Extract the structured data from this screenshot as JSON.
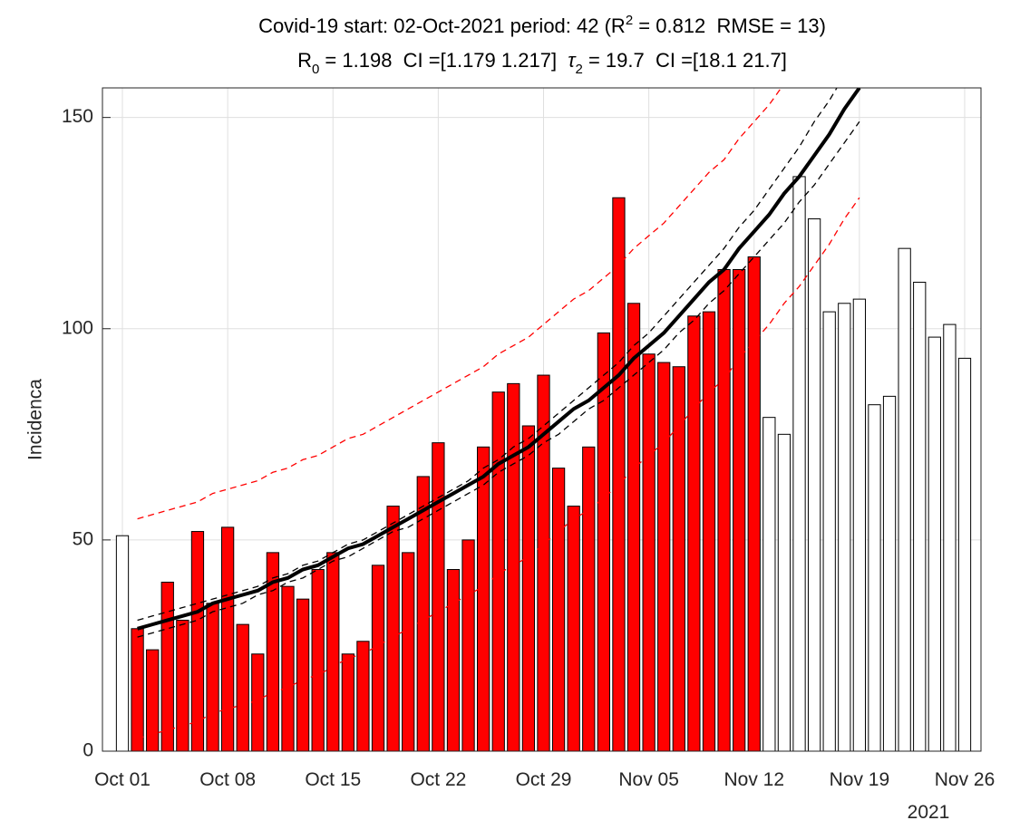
{
  "chart_data": {
    "type": "bar",
    "title_line1": [
      "Covid-19 start: 02-Oct-2021 period: 42 (R",
      "2",
      " = 0.812  RMSE = 13)"
    ],
    "title_line2": [
      "R",
      "0",
      " = 1.198  CI =[1.179 1.217]  ",
      "τ",
      "2",
      " = 19.7  CI =[18.1 21.7]"
    ],
    "ylabel": "Incidenca",
    "x_year_label": "2021",
    "categories": [
      "Oct 01",
      null,
      null,
      null,
      null,
      null,
      null,
      "Oct 08",
      null,
      null,
      null,
      null,
      null,
      null,
      "Oct 15",
      null,
      null,
      null,
      null,
      null,
      null,
      "Oct 22",
      null,
      null,
      null,
      null,
      null,
      null,
      "Oct 29",
      null,
      null,
      null,
      null,
      null,
      null,
      "Nov 05",
      null,
      null,
      null,
      null,
      null,
      null,
      "Nov 12",
      null,
      null,
      null,
      null,
      null,
      null,
      "Nov 19",
      null,
      null,
      null,
      null,
      null,
      null,
      "Nov 26"
    ],
    "ylim": [
      0,
      157
    ],
    "yticks": [
      0,
      50,
      100,
      150
    ],
    "grid": true,
    "bar_series": [
      {
        "color": "#ffffff",
        "values": [
          51,
          null,
          null,
          null,
          null,
          null,
          null,
          null,
          null,
          null,
          null,
          null,
          null,
          null,
          null,
          null,
          null,
          null,
          null,
          null,
          null,
          null,
          null,
          null,
          null,
          null,
          null,
          null,
          null,
          null,
          null,
          null,
          null,
          null,
          null,
          null,
          null,
          null,
          null,
          null,
          null,
          null,
          null,
          79,
          75,
          136,
          126,
          104,
          106,
          107,
          82,
          84,
          119,
          111,
          98,
          101,
          93
        ]
      },
      {
        "color": "#ff0000",
        "values": [
          null,
          29,
          24,
          40,
          31,
          52,
          35,
          53,
          30,
          23,
          47,
          39,
          36,
          43,
          47,
          23,
          26,
          44,
          58,
          47,
          65,
          73,
          43,
          50,
          72,
          85,
          87,
          77,
          89,
          67,
          58,
          72,
          99,
          131,
          106,
          94,
          92,
          91,
          103,
          104,
          114,
          114,
          117,
          null,
          null,
          null,
          null,
          null,
          null,
          null,
          null,
          null,
          null,
          null,
          null,
          null,
          null
        ]
      }
    ],
    "line_series": [
      {
        "color": "#ff0000",
        "dash": true,
        "width": 1.3,
        "values": [
          null,
          55,
          56,
          57,
          58,
          59,
          61,
          62,
          63,
          64,
          66,
          67,
          69,
          70,
          72,
          74,
          75,
          77,
          79,
          81,
          83,
          85,
          87,
          89,
          91,
          94,
          96,
          98,
          101,
          104,
          107,
          109,
          112,
          115,
          119,
          122,
          125,
          129,
          133,
          137,
          140,
          145,
          149,
          153,
          158,
          162,
          167,
          172,
          178,
          183,
          null,
          null,
          null,
          null,
          null,
          null,
          null
        ]
      },
      {
        "color": "#ff0000",
        "dash": true,
        "width": 1.3,
        "values": [
          null,
          3,
          4,
          5,
          6,
          7,
          9,
          10,
          11,
          12,
          14,
          15,
          17,
          18,
          20,
          22,
          23,
          25,
          27,
          29,
          31,
          33,
          35,
          37,
          39,
          42,
          44,
          46,
          49,
          52,
          55,
          57,
          60,
          63,
          67,
          70,
          73,
          77,
          81,
          85,
          88,
          93,
          97,
          101,
          106,
          110,
          115,
          120,
          126,
          131,
          null,
          null,
          null,
          null,
          null,
          null,
          null
        ]
      },
      {
        "color": "#000000",
        "dash": true,
        "width": 1.3,
        "values": [
          null,
          31,
          32,
          33,
          34,
          35,
          36,
          37,
          38,
          39,
          41,
          42,
          44,
          45,
          47,
          49,
          50,
          52,
          54,
          56,
          58,
          60,
          62,
          64,
          67,
          69,
          72,
          74,
          77,
          80,
          83,
          86,
          89,
          92,
          96,
          99,
          103,
          107,
          111,
          115,
          119,
          124,
          128,
          133,
          138,
          143,
          149,
          154,
          160,
          166,
          null,
          null,
          null,
          null,
          null,
          null,
          null
        ]
      },
      {
        "color": "#000000",
        "dash": true,
        "width": 1.3,
        "values": [
          null,
          27,
          28,
          29,
          30,
          31,
          33,
          34,
          35,
          37,
          38,
          40,
          41,
          43,
          45,
          46,
          48,
          50,
          52,
          53,
          55,
          57,
          59,
          61,
          63,
          66,
          68,
          70,
          73,
          75,
          78,
          81,
          83,
          86,
          89,
          92,
          95,
          99,
          102,
          106,
          109,
          113,
          117,
          121,
          125,
          130,
          134,
          139,
          144,
          149,
          null,
          null,
          null,
          null,
          null,
          null,
          null
        ]
      },
      {
        "color": "#000000",
        "dash": false,
        "width": 4,
        "values": [
          null,
          29,
          30,
          31,
          32,
          33,
          35,
          36,
          37,
          38,
          40,
          41,
          43,
          44,
          46,
          48,
          49,
          51,
          53,
          55,
          57,
          59,
          61,
          63,
          65,
          68,
          70,
          72,
          75,
          78,
          81,
          83,
          86,
          89,
          93,
          96,
          99,
          103,
          107,
          111,
          114,
          119,
          123,
          127,
          132,
          136,
          141,
          146,
          152,
          157,
          null,
          null,
          null,
          null,
          null,
          null,
          null
        ]
      }
    ]
  }
}
